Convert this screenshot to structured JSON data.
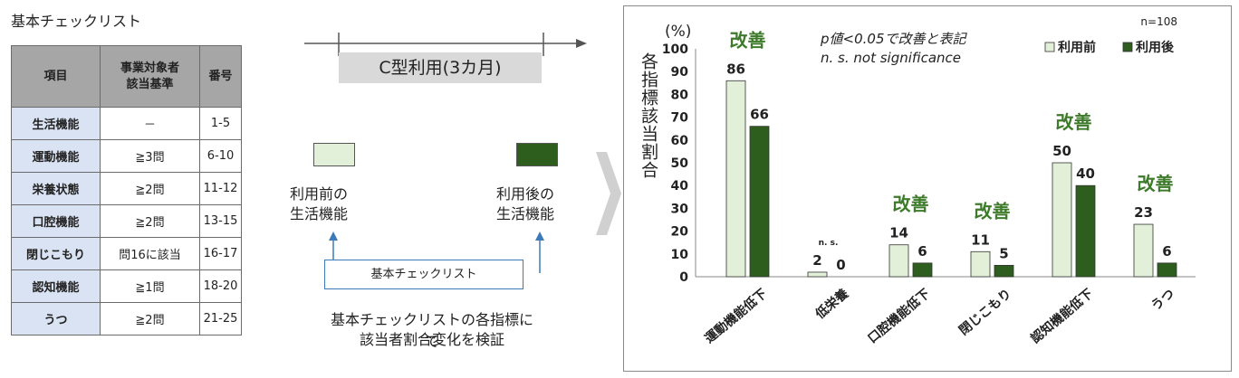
{
  "table": {
    "title": "基本チェックリスト",
    "headers": [
      "項目",
      "事業対象者\n該当基準",
      "番号"
    ],
    "rows": [
      {
        "category": "生活機能",
        "criterion": "－",
        "number": "1-5"
      },
      {
        "category": "運動機能",
        "criterion": "≧3問",
        "number": "6-10"
      },
      {
        "category": "栄養状態",
        "criterion": "≧2問",
        "number": "11-12"
      },
      {
        "category": "口腔機能",
        "criterion": "≧2問",
        "number": "13-15"
      },
      {
        "category": "閉じこもり",
        "criterion": "問16に該当",
        "number": "16-17"
      },
      {
        "category": "認知機能",
        "criterion": "≧1問",
        "number": "18-20"
      },
      {
        "category": "うつ",
        "criterion": "≧2問",
        "number": "21-25"
      }
    ]
  },
  "diagram": {
    "period_label": "C型利用(3カ月)",
    "before_label_1": "利用前の",
    "before_label_2": "生活機能",
    "after_label_1": "利用後の",
    "after_label_2": "生活機能",
    "checklist_box": "基本チェックリスト",
    "summary_1": "基本チェックリストの各指標にて",
    "summary_2": "該当者割合変化を検証"
  },
  "colors": {
    "before": "#e2f0d9",
    "after": "#2e5e1e",
    "improve_text": "#3d7a2a",
    "table_header": "#a6a6a6",
    "table_category": "#dae3f3",
    "flow_line": "#3c7ab8"
  },
  "chart_data": {
    "type": "bar",
    "ylabel": "各指標該当割合",
    "yunit": "(%)",
    "ylim": [
      0,
      100
    ],
    "yticks": [
      0,
      10,
      20,
      30,
      40,
      50,
      60,
      70,
      80,
      90,
      100
    ],
    "sample_size": "n=108",
    "note_line_1": "p値<0.05で改善と表記",
    "note_line_2": "n. s. not significance",
    "legend_position": "top-right",
    "categories": [
      "運動機能低下",
      "低栄養",
      "口腔機能低下",
      "閉じこもり",
      "認知機能低下",
      "うつ"
    ],
    "series": [
      {
        "name": "利用前",
        "values": [
          86,
          2,
          14,
          11,
          50,
          23
        ]
      },
      {
        "name": "利用後",
        "values": [
          66,
          0,
          6,
          5,
          40,
          6
        ]
      }
    ],
    "annotations": [
      "改善",
      "n. s.",
      "改善",
      "改善",
      "改善",
      "改善"
    ]
  }
}
